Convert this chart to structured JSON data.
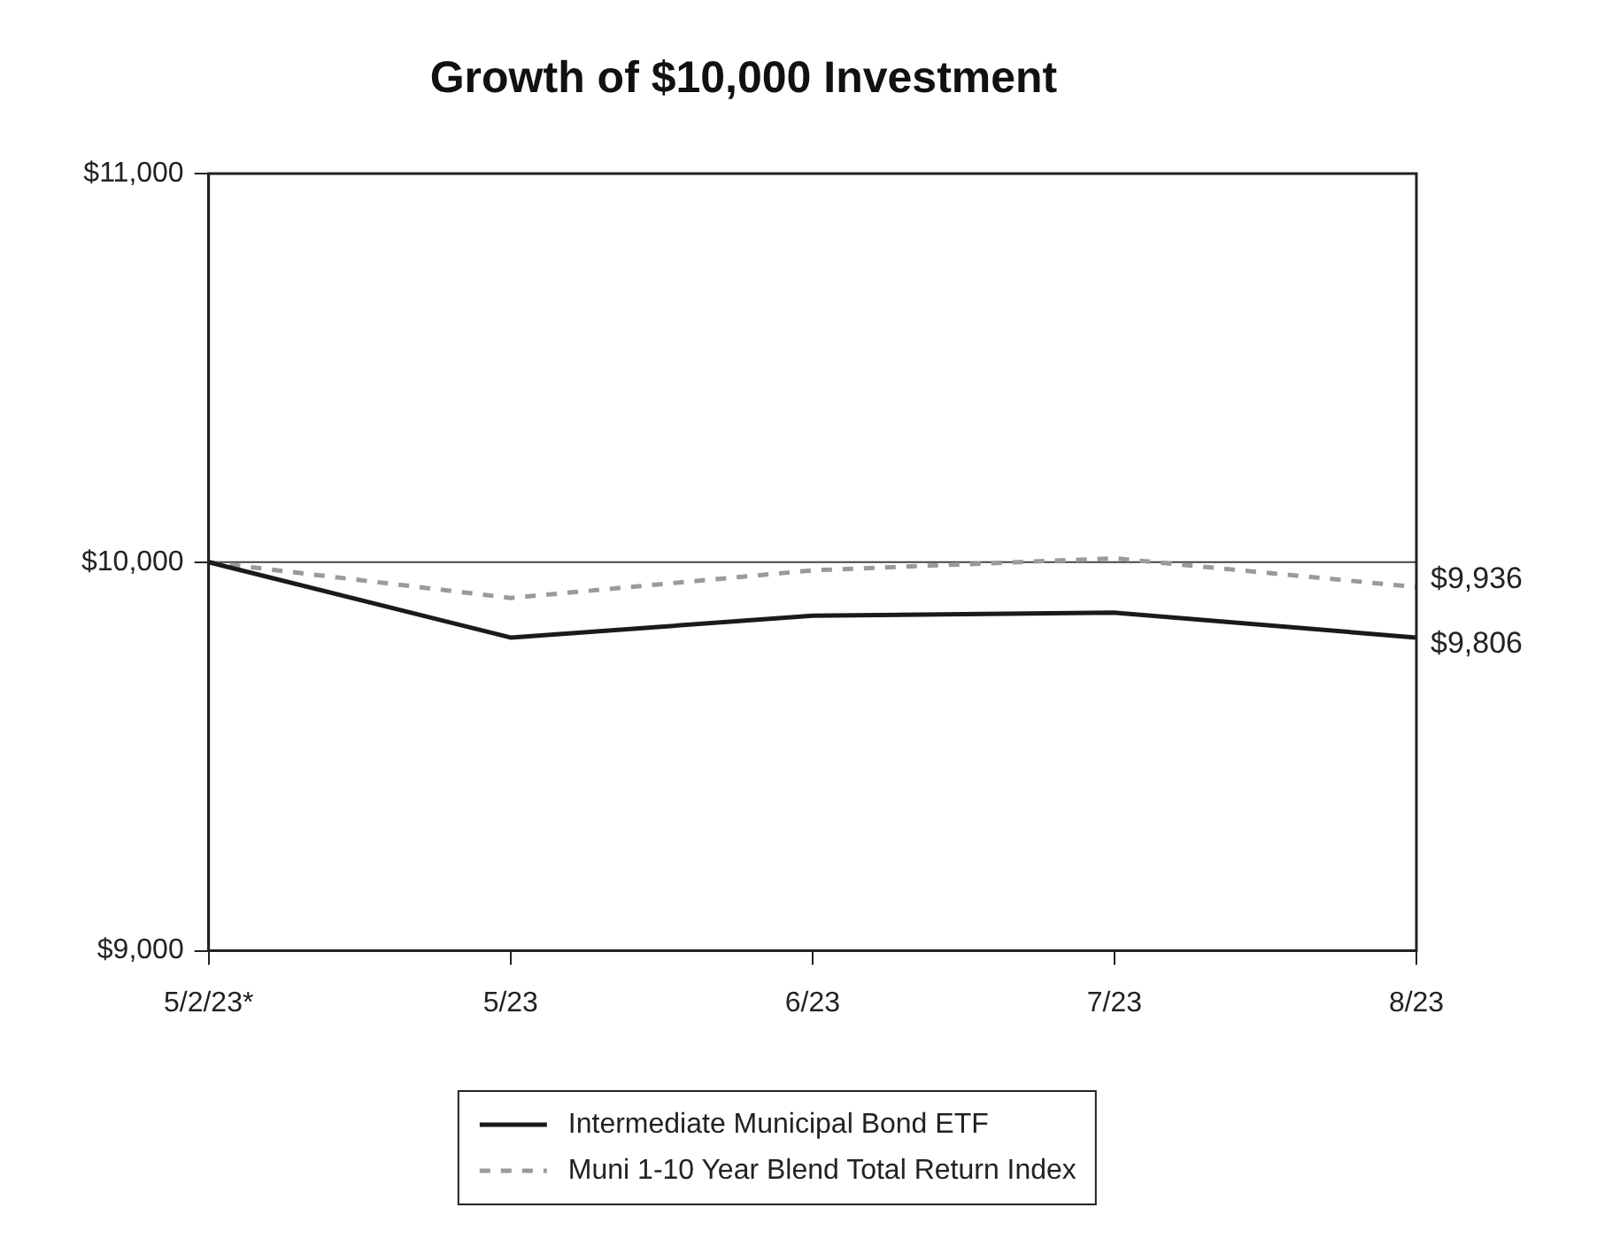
{
  "chart_data": {
    "type": "line",
    "title": "Growth of $10,000 Investment",
    "categories": [
      "5/2/23*",
      "5/23",
      "6/23",
      "7/23",
      "8/23"
    ],
    "ylim": [
      9000,
      11000
    ],
    "yticks": [
      {
        "value": 9000,
        "label": "$9,000"
      },
      {
        "value": 10000,
        "label": "$10,000"
      },
      {
        "value": 11000,
        "label": "$11,000"
      }
    ],
    "series": [
      {
        "name": "Intermediate Municipal Bond ETF",
        "color": "#1a1a1a",
        "line_style": "solid",
        "values": [
          10000,
          9806,
          9862,
          9870,
          9806
        ]
      },
      {
        "name": "Muni 1-10 Year Blend Total Return Index",
        "color": "#9a9a9a",
        "line_style": "dashed",
        "values": [
          10000,
          9908,
          9979,
          10010,
          9936
        ]
      }
    ],
    "ref_lines": [
      {
        "axis": "y",
        "value": 10000,
        "color": "#444444"
      }
    ],
    "annotations": [
      {
        "text": "$9,936",
        "x": "8/23",
        "y": 9936
      },
      {
        "text": "$9,806",
        "x": "8/23",
        "y": 9806
      }
    ],
    "grid": false,
    "legend": "bottom",
    "marker": "none"
  }
}
